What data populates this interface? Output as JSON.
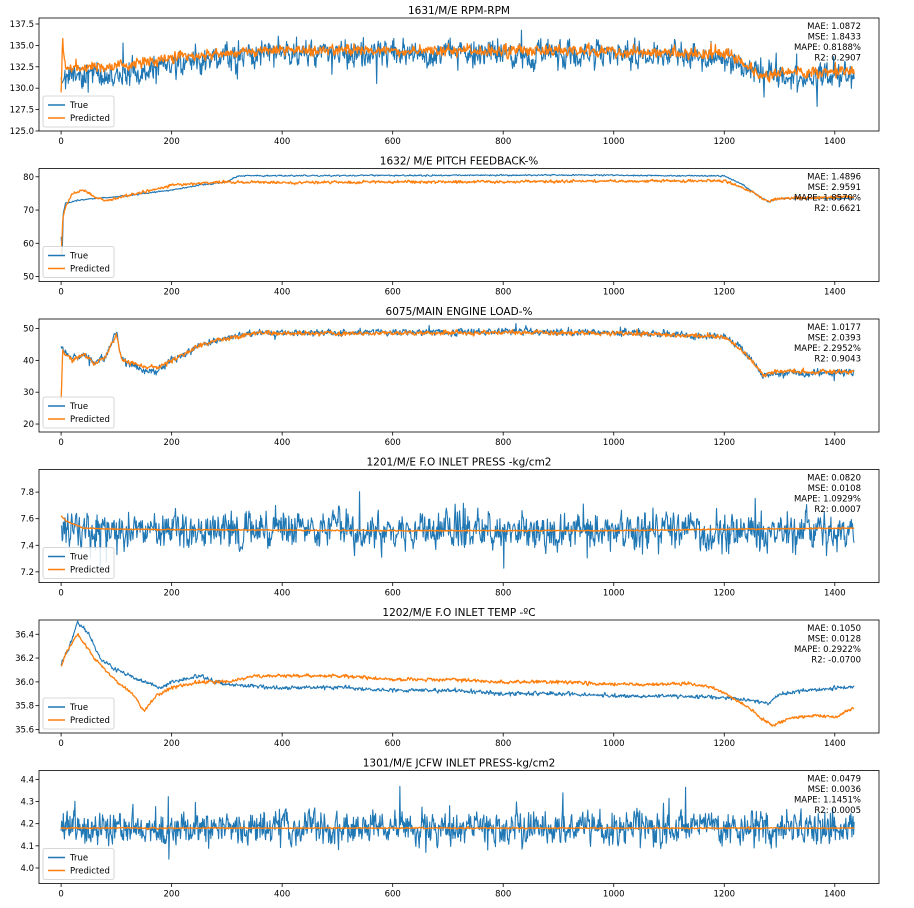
{
  "colors": {
    "true": "#1f77b4",
    "predicted": "#ff7f0e",
    "axis": "#000000"
  },
  "legend": {
    "true_label": "True",
    "predicted_label": "Predicted",
    "placement": "lower-left"
  },
  "chart_data": [
    {
      "type": "line",
      "title": "1631/M/E RPM-RPM",
      "xlim": [
        -40,
        1480
      ],
      "ylim": [
        125.0,
        138.2
      ],
      "xticks": [
        0,
        200,
        400,
        600,
        800,
        1000,
        1200,
        1400
      ],
      "xtick_labels": [
        "0",
        "200",
        "400",
        "600",
        "800",
        "1000",
        "1200",
        "1400"
      ],
      "yticks": [
        125.0,
        127.5,
        130.0,
        132.5,
        135.0,
        137.5
      ],
      "ytick_labels": [
        "125.0",
        "127.5",
        "130.0",
        "132.5",
        "135.0",
        "137.5"
      ],
      "metrics": [
        "MAE: 1.0872",
        "MSE: 1.8433",
        "MAPE: 0.8188%",
        "R2: 0.2907"
      ],
      "noise": {
        "true": 1.1,
        "predicted": 0.45,
        "spikes": 0.02
      },
      "series": [
        {
          "name": "True",
          "points": [
            [
              0,
              131.5
            ],
            [
              50,
              131.5
            ],
            [
              100,
              131.8
            ],
            [
              150,
              132.0
            ],
            [
              200,
              132.6
            ],
            [
              300,
              133.6
            ],
            [
              400,
              134.2
            ],
            [
              600,
              134.0
            ],
            [
              800,
              134.0
            ],
            [
              1000,
              133.9
            ],
            [
              1100,
              133.9
            ],
            [
              1200,
              133.7
            ],
            [
              1250,
              132.0
            ],
            [
              1300,
              131.2
            ],
            [
              1435,
              131.5
            ]
          ]
        },
        {
          "name": "Predicted",
          "points": [
            [
              0,
              129.5
            ],
            [
              3,
              136.0
            ],
            [
              8,
              132.2
            ],
            [
              30,
              132.4
            ],
            [
              100,
              132.6
            ],
            [
              150,
              133.0
            ],
            [
              200,
              133.6
            ],
            [
              300,
              134.1
            ],
            [
              400,
              134.5
            ],
            [
              600,
              134.4
            ],
            [
              800,
              134.4
            ],
            [
              1000,
              134.3
            ],
            [
              1200,
              134.0
            ],
            [
              1250,
              132.4
            ],
            [
              1270,
              131.2
            ],
            [
              1300,
              131.8
            ],
            [
              1435,
              132.0
            ]
          ]
        }
      ]
    },
    {
      "type": "line",
      "title": "1632/ M/E PITCH FEEDBACK-%",
      "xlim": [
        -40,
        1480
      ],
      "ylim": [
        48.5,
        82.5
      ],
      "xticks": [
        0,
        200,
        400,
        600,
        800,
        1000,
        1200,
        1400
      ],
      "xtick_labels": [
        "0",
        "200",
        "400",
        "600",
        "800",
        "1000",
        "1200",
        "1400"
      ],
      "yticks": [
        50,
        60,
        70,
        80
      ],
      "ytick_labels": [
        "50",
        "60",
        "70",
        "80"
      ],
      "metrics": [
        "MAE: 1.4896",
        "MSE: 2.9591",
        "MAPE: 1.8570%",
        "R2: 0.6621"
      ],
      "noise": {
        "true": 0.15,
        "predicted": 0.3,
        "spikes": 0
      },
      "series": [
        {
          "name": "True",
          "points": [
            [
              0,
              62
            ],
            [
              2,
              57
            ],
            [
              4,
              69
            ],
            [
              8,
              72
            ],
            [
              30,
              73
            ],
            [
              60,
              73.5
            ],
            [
              100,
              74
            ],
            [
              200,
              76
            ],
            [
              250,
              77.5
            ],
            [
              300,
              78.5
            ],
            [
              320,
              80.3
            ],
            [
              800,
              80.5
            ],
            [
              1000,
              80.5
            ],
            [
              1200,
              80.2
            ],
            [
              1230,
              78
            ],
            [
              1260,
              74.5
            ],
            [
              1280,
              72.5
            ],
            [
              1300,
              73.5
            ],
            [
              1435,
              73.5
            ]
          ]
        },
        {
          "name": "Predicted",
          "points": [
            [
              0,
              56
            ],
            [
              3,
              67
            ],
            [
              6,
              70
            ],
            [
              20,
              75
            ],
            [
              40,
              76
            ],
            [
              60,
              74
            ],
            [
              80,
              73
            ],
            [
              100,
              73.5
            ],
            [
              200,
              77.5
            ],
            [
              250,
              78
            ],
            [
              300,
              78.5
            ],
            [
              400,
              78.3
            ],
            [
              600,
              78.5
            ],
            [
              800,
              78.5
            ],
            [
              1000,
              78.7
            ],
            [
              1200,
              78.8
            ],
            [
              1230,
              77
            ],
            [
              1260,
              74.5
            ],
            [
              1280,
              72.5
            ],
            [
              1300,
              73.5
            ],
            [
              1435,
              74
            ]
          ]
        }
      ]
    },
    {
      "type": "line",
      "title": "6075/MAIN ENGINE LOAD-%",
      "xlim": [
        -40,
        1480
      ],
      "ylim": [
        17.5,
        53.0
      ],
      "xticks": [
        0,
        200,
        400,
        600,
        800,
        1000,
        1200,
        1400
      ],
      "xtick_labels": [
        "0",
        "200",
        "400",
        "600",
        "800",
        "1000",
        "1200",
        "1400"
      ],
      "yticks": [
        20,
        30,
        40,
        50
      ],
      "ytick_labels": [
        "20",
        "30",
        "40",
        "50"
      ],
      "metrics": [
        "MAE: 1.0177",
        "MSE: 2.0393",
        "MAPE: 2.2952%",
        "R2: 0.9043"
      ],
      "noise": {
        "true": 0.8,
        "predicted": 0.5,
        "spikes": 0.01
      },
      "series": [
        {
          "name": "True",
          "points": [
            [
              0,
              44
            ],
            [
              20,
              40
            ],
            [
              40,
              42
            ],
            [
              60,
              39
            ],
            [
              80,
              41
            ],
            [
              100,
              49
            ],
            [
              110,
              40
            ],
            [
              150,
              37
            ],
            [
              170,
              36.5
            ],
            [
              200,
              40
            ],
            [
              250,
              44.5
            ],
            [
              300,
              47
            ],
            [
              350,
              48.5
            ],
            [
              600,
              48.8
            ],
            [
              800,
              49
            ],
            [
              1000,
              48.8
            ],
            [
              1200,
              47.5
            ],
            [
              1240,
              42
            ],
            [
              1270,
              35
            ],
            [
              1300,
              36
            ],
            [
              1435,
              36
            ]
          ]
        },
        {
          "name": "Predicted",
          "points": [
            [
              0,
              28
            ],
            [
              3,
              43
            ],
            [
              20,
              40
            ],
            [
              40,
              42
            ],
            [
              60,
              39
            ],
            [
              80,
              41
            ],
            [
              100,
              48
            ],
            [
              110,
              40
            ],
            [
              150,
              38
            ],
            [
              170,
              37.5
            ],
            [
              200,
              40
            ],
            [
              250,
              44.5
            ],
            [
              300,
              47
            ],
            [
              350,
              48.5
            ],
            [
              600,
              48.5
            ],
            [
              800,
              48.8
            ],
            [
              1000,
              48.5
            ],
            [
              1200,
              47.5
            ],
            [
              1240,
              42
            ],
            [
              1270,
              35.5
            ],
            [
              1300,
              36.5
            ],
            [
              1435,
              36.5
            ]
          ]
        }
      ]
    },
    {
      "type": "line",
      "title": "1201/M/E F.O INLET PRESS -kg/cm2",
      "xlim": [
        -40,
        1480
      ],
      "ylim": [
        7.12,
        7.97
      ],
      "xticks": [
        0,
        200,
        400,
        600,
        800,
        1000,
        1200,
        1400
      ],
      "xtick_labels": [
        "0",
        "200",
        "400",
        "600",
        "800",
        "1000",
        "1200",
        "1400"
      ],
      "yticks": [
        7.2,
        7.4,
        7.6,
        7.8
      ],
      "ytick_labels": [
        "7.2",
        "7.4",
        "7.6",
        "7.8"
      ],
      "metrics": [
        "MAE: 0.0820",
        "MSE: 0.0108",
        "MAPE: 1.0929%",
        "R2: 0.0007"
      ],
      "noise": {
        "true": 0.1,
        "predicted": 0.003,
        "spikes": 0.03
      },
      "series": [
        {
          "name": "True",
          "points": [
            [
              0,
              7.52
            ],
            [
              1435,
              7.5
            ]
          ]
        },
        {
          "name": "Predicted",
          "points": [
            [
              0,
              7.62
            ],
            [
              10,
              7.58
            ],
            [
              40,
              7.53
            ],
            [
              100,
              7.52
            ],
            [
              600,
              7.51
            ],
            [
              1000,
              7.51
            ],
            [
              1200,
              7.52
            ],
            [
              1435,
              7.53
            ]
          ]
        }
      ]
    },
    {
      "type": "line",
      "title": "1202/M/E F.O INLET TEMP -ºC",
      "xlim": [
        -40,
        1480
      ],
      "ylim": [
        35.57,
        36.52
      ],
      "xticks": [
        0,
        200,
        400,
        600,
        800,
        1000,
        1200,
        1400
      ],
      "xtick_labels": [
        "0",
        "200",
        "400",
        "600",
        "800",
        "1000",
        "1200",
        "1400"
      ],
      "yticks": [
        35.6,
        35.8,
        36.0,
        36.2,
        36.4
      ],
      "ytick_labels": [
        "35.6",
        "35.8",
        "36.0",
        "36.2",
        "36.4"
      ],
      "metrics": [
        "MAE: 0.1050",
        "MSE: 0.0128",
        "MAPE: 0.2922%",
        "R2: -0.0700"
      ],
      "noise": {
        "true": 0.012,
        "predicted": 0.01,
        "spikes": 0
      },
      "series": [
        {
          "name": "True",
          "points": [
            [
              0,
              36.15
            ],
            [
              20,
              36.35
            ],
            [
              30,
              36.5
            ],
            [
              50,
              36.4
            ],
            [
              70,
              36.2
            ],
            [
              100,
              36.1
            ],
            [
              150,
              36.0
            ],
            [
              180,
              35.95
            ],
            [
              200,
              36.0
            ],
            [
              250,
              36.05
            ],
            [
              280,
              36.0
            ],
            [
              300,
              35.98
            ],
            [
              400,
              35.95
            ],
            [
              500,
              35.95
            ],
            [
              600,
              35.93
            ],
            [
              700,
              35.93
            ],
            [
              800,
              35.9
            ],
            [
              900,
              35.9
            ],
            [
              1000,
              35.88
            ],
            [
              1100,
              35.88
            ],
            [
              1200,
              35.87
            ],
            [
              1250,
              35.84
            ],
            [
              1280,
              35.82
            ],
            [
              1300,
              35.9
            ],
            [
              1350,
              35.93
            ],
            [
              1435,
              35.96
            ]
          ]
        },
        {
          "name": "Predicted",
          "points": [
            [
              0,
              36.13
            ],
            [
              10,
              36.25
            ],
            [
              30,
              36.4
            ],
            [
              60,
              36.2
            ],
            [
              100,
              36.0
            ],
            [
              130,
              35.9
            ],
            [
              150,
              35.75
            ],
            [
              170,
              35.88
            ],
            [
              200,
              35.95
            ],
            [
              250,
              36.0
            ],
            [
              300,
              36.0
            ],
            [
              350,
              36.05
            ],
            [
              400,
              36.05
            ],
            [
              500,
              36.05
            ],
            [
              600,
              36.02
            ],
            [
              700,
              36.02
            ],
            [
              800,
              36.0
            ],
            [
              900,
              36.0
            ],
            [
              1000,
              35.98
            ],
            [
              1100,
              35.98
            ],
            [
              1130,
              35.99
            ],
            [
              1180,
              35.95
            ],
            [
              1200,
              35.9
            ],
            [
              1240,
              35.8
            ],
            [
              1270,
              35.68
            ],
            [
              1290,
              35.63
            ],
            [
              1320,
              35.7
            ],
            [
              1370,
              35.72
            ],
            [
              1400,
              35.7
            ],
            [
              1435,
              35.78
            ]
          ]
        }
      ]
    },
    {
      "type": "line",
      "title": "1301/M/E JCFW INLET PRESS-kg/cm2",
      "xlim": [
        -40,
        1480
      ],
      "ylim": [
        3.93,
        4.44
      ],
      "xticks": [
        0,
        200,
        400,
        600,
        800,
        1000,
        1200,
        1400
      ],
      "xtick_labels": [
        "0",
        "200",
        "400",
        "600",
        "800",
        "1000",
        "1200",
        "1400"
      ],
      "yticks": [
        4.0,
        4.1,
        4.2,
        4.3,
        4.4
      ],
      "ytick_labels": [
        "4.0",
        "4.1",
        "4.2",
        "4.3",
        "4.4"
      ],
      "metrics": [
        "MAE: 0.0479",
        "MSE: 0.0036",
        "MAPE: 1.1451%",
        "R2: 0.0005"
      ],
      "noise": {
        "true": 0.055,
        "predicted": 0.002,
        "spikes": 0.03
      },
      "series": [
        {
          "name": "True",
          "points": [
            [
              0,
              4.18
            ],
            [
              1435,
              4.18
            ]
          ]
        },
        {
          "name": "Predicted",
          "points": [
            [
              0,
              4.18
            ],
            [
              1435,
              4.18
            ]
          ]
        }
      ]
    }
  ]
}
